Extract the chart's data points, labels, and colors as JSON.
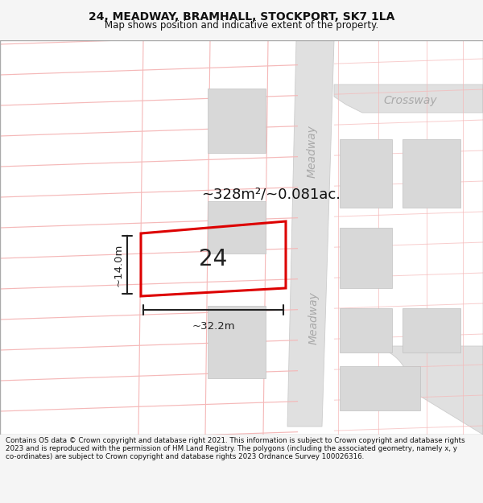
{
  "title": "24, MEADWAY, BRAMHALL, STOCKPORT, SK7 1LA",
  "subtitle": "Map shows position and indicative extent of the property.",
  "footer": "Contains OS data © Crown copyright and database right 2021. This information is subject to Crown copyright and database rights 2023 and is reproduced with the permission of HM Land Registry. The polygons (including the associated geometry, namely x, y co-ordinates) are subject to Crown copyright and database rights 2023 Ordnance Survey 100026316.",
  "bg_color": "#f5f5f5",
  "map_bg": "#ffffff",
  "property_label": "24",
  "area_label": "~328m²/~0.081ac.",
  "dim_width_label": "~32.2m",
  "dim_height_label": "~14.0m",
  "street_meadway": "Meadway",
  "street_crossway": "Crossway",
  "plot_color": "#dd0000",
  "plot_lw": 2.2,
  "pink": "#f5b8b8",
  "road_gray": "#e0e0e0",
  "road_edge": "#cccccc",
  "bld_gray": "#d8d8d8",
  "bld_edge": "#c0c0c0",
  "dim_color": "#222222",
  "street_color": "#aaaaaa",
  "title_fs": 10,
  "sub_fs": 8.5,
  "footer_fs": 6.3,
  "area_fs": 13,
  "num_fs": 20,
  "dim_fs": 9.5,
  "street_fs": 10
}
